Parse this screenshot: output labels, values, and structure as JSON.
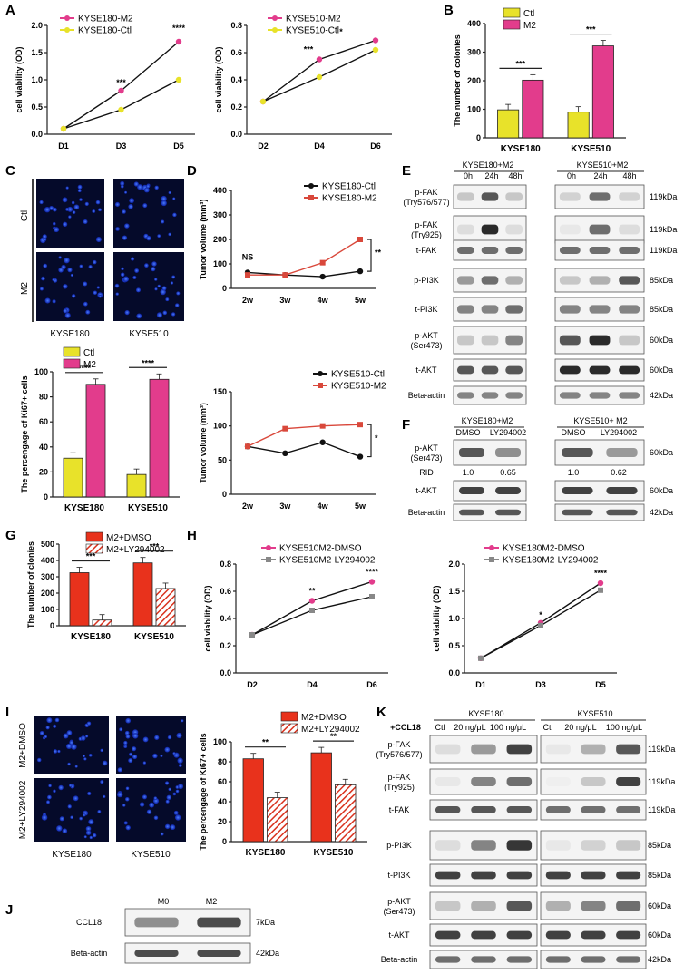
{
  "panels": {
    "A": "A",
    "B": "B",
    "C": "C",
    "D": "D",
    "E": "E",
    "F": "F",
    "G": "G",
    "H": "H",
    "I": "I",
    "J": "J",
    "K": "K"
  },
  "panel_A1": {
    "title": "",
    "ylabel": "cell viability (OD)",
    "legend": [
      "KYSE180-M2",
      "KYSE180-Ctl"
    ],
    "categories": [
      "D1",
      "D3",
      "D5"
    ],
    "yticks": [
      "0.0",
      "0.5",
      "1.0",
      "1.5",
      "2.0"
    ],
    "sig": [
      "***",
      "****"
    ],
    "colors": {
      "m2": "#e23c8c",
      "ctl": "#e8e22a"
    }
  },
  "panel_A2": {
    "ylabel": "cell viability (OD)",
    "legend": [
      "KYSE510-M2",
      "KYSE510-Ctl"
    ],
    "categories": [
      "D2",
      "D4",
      "D6"
    ],
    "yticks": [
      "0.0",
      "0.2",
      "0.4",
      "0.6",
      "0.8"
    ],
    "sig": [
      "***",
      "*"
    ]
  },
  "panel_B": {
    "ylabel": "The number of colonies",
    "legend": [
      "Ctl",
      "M2"
    ],
    "categories": [
      "KYSE180",
      "KYSE510"
    ],
    "yticks": [
      "0",
      "100",
      "200",
      "300",
      "400"
    ],
    "sig": [
      "***",
      "***"
    ]
  },
  "panel_C": {
    "row_labels": [
      "Ctl",
      "M2"
    ],
    "col_labels": [
      "KYSE180",
      "KYSE510"
    ],
    "ylabel": "The percengage of Ki67+ cells",
    "legend": [
      "Ctl",
      "M2"
    ],
    "categories": [
      "KYSE180",
      "KYSE510"
    ],
    "yticks": [
      "0",
      "20",
      "40",
      "60",
      "80",
      "100"
    ],
    "sig": [
      "****",
      "****"
    ]
  },
  "panel_D1": {
    "ylabel": "Tumor volume (mm³)",
    "legend": [
      "KYSE180-Ctl",
      "KYSE180-M2"
    ],
    "categories": [
      "2w",
      "3w",
      "4w",
      "5w"
    ],
    "yticks": [
      "0",
      "100",
      "200",
      "300",
      "400"
    ],
    "ns": "NS",
    "sig": "**"
  },
  "panel_D2": {
    "ylabel": "Tumor volume (mm³)",
    "legend": [
      "KYSE510-Ctl",
      "KYSE510-M2"
    ],
    "categories": [
      "2w",
      "3w",
      "4w",
      "5w"
    ],
    "yticks": [
      "0",
      "50",
      "100",
      "150"
    ],
    "sig": "*"
  },
  "panel_E": {
    "groups": [
      "KYSE180+M2",
      "KYSE510+M2"
    ],
    "times": [
      "0h",
      "24h",
      "48h"
    ],
    "rows": [
      "p-FAK (Try576/577)",
      "p-FAK (Try925)",
      "t-FAK",
      "p-PI3K",
      "t-PI3K",
      "p-AKT (Ser473)",
      "t-AKT",
      "Beta-actin"
    ],
    "row_labels_l1": [
      "p-FAK",
      "p-FAK",
      "t-FAK",
      "p-PI3K",
      "t-PI3K",
      "p-AKT",
      "t-AKT",
      "Beta-actin"
    ],
    "row_labels_l2": [
      "(Try576/577)",
      "(Try925)",
      "",
      "",
      "",
      "(Ser473)",
      "",
      ""
    ],
    "mw": [
      "119kDa",
      "119kDa",
      "119kDa",
      "85kDa",
      "85kDa",
      "60kDa",
      "60kDa",
      "42kDa"
    ]
  },
  "panel_F": {
    "groups": [
      "KYSE180+M2",
      "KYSE510+ M2"
    ],
    "treat": [
      "DMSO",
      "LY294002"
    ],
    "rows_l1": [
      "p-AKT",
      "t-AKT",
      "Beta-actin"
    ],
    "rows_l2": [
      "(Ser473)",
      "",
      ""
    ],
    "rid_label": "RID",
    "rid": [
      "1.0",
      "0.65",
      "1.0",
      "0.62"
    ],
    "mw": [
      "60kDa",
      "60kDa",
      "42kDa"
    ]
  },
  "panel_G": {
    "ylabel": "The number of clonies",
    "legend": [
      "M2+DMSO",
      "M2+LY294002"
    ],
    "categories": [
      "KYSE180",
      "KYSE510"
    ],
    "yticks": [
      "0",
      "100",
      "200",
      "300",
      "400",
      "500"
    ],
    "sig": [
      "***",
      "***"
    ]
  },
  "panel_H1": {
    "ylabel": "cell viability (OD)",
    "legend": [
      "KYSE510M2-DMSO",
      "KYSE510M2-LY294002"
    ],
    "categories": [
      "D2",
      "D4",
      "D6"
    ],
    "yticks": [
      "0.0",
      "0.2",
      "0.4",
      "0.6",
      "0.8"
    ],
    "sig": [
      "**",
      "****"
    ]
  },
  "panel_H2": {
    "ylabel": "cell viability (OD)",
    "legend": [
      "KYSE180M2-DMSO",
      "KYSE180M2-LY294002"
    ],
    "categories": [
      "D1",
      "D3",
      "D5"
    ],
    "yticks": [
      "0.0",
      "0.5",
      "1.0",
      "1.5",
      "2.0"
    ],
    "sig": [
      "*",
      "****"
    ]
  },
  "panel_I": {
    "row_labels": [
      "M2+DMSO",
      "M2+LY294002"
    ],
    "col_labels": [
      "KYSE180",
      "KYSE510"
    ],
    "ylabel": "The percengage of Ki67+ cells",
    "legend": [
      "M2+DMSO",
      "M2+LY294002"
    ],
    "categories": [
      "KYSE180",
      "KYSE510"
    ],
    "yticks": [
      "0",
      "20",
      "40",
      "60",
      "80",
      "100"
    ],
    "sig": [
      "**",
      "**"
    ]
  },
  "panel_J": {
    "cols": [
      "M0",
      "M2"
    ],
    "rows": [
      "CCL18",
      "Beta-actin"
    ],
    "mw": [
      "7kDa",
      "42kDa"
    ]
  },
  "panel_K": {
    "groups": [
      "KYSE180",
      "KYSE510"
    ],
    "treat_label": "+CCL18",
    "treat": [
      "Ctl",
      "20 ng/μL",
      "100 ng/μL"
    ],
    "rows_l1": [
      "p-FAK",
      "p-FAK",
      "t-FAK",
      "p-PI3K",
      "t-PI3K",
      "p-AKT",
      "t-AKT",
      "Beta-actin"
    ],
    "rows_l2": [
      "(Try576/577)",
      "(Try925)",
      "",
      "",
      "",
      "(Ser473)",
      "",
      ""
    ],
    "mw": [
      "119kDa",
      "119kDa",
      "119kDa",
      "85kDa",
      "85kDa",
      "60kDa",
      "60kDa",
      "42kDa"
    ]
  },
  "chart_data": [
    {
      "id": "A1",
      "type": "line",
      "title": "",
      "xlabel": "",
      "ylabel": "cell viability (OD)",
      "categories": [
        "D1",
        "D3",
        "D5"
      ],
      "ylim": [
        0,
        2
      ],
      "series": [
        {
          "name": "KYSE180-M2",
          "values": [
            0.1,
            0.8,
            1.7
          ]
        },
        {
          "name": "KYSE180-Ctl",
          "values": [
            0.1,
            0.45,
            1.0
          ]
        }
      ]
    },
    {
      "id": "A2",
      "type": "line",
      "title": "",
      "xlabel": "",
      "ylabel": "cell viability (OD)",
      "categories": [
        "D2",
        "D4",
        "D6"
      ],
      "ylim": [
        0,
        0.8
      ],
      "series": [
        {
          "name": "KYSE510-M2",
          "values": [
            0.24,
            0.55,
            0.69
          ]
        },
        {
          "name": "KYSE510-Ctl",
          "values": [
            0.24,
            0.42,
            0.62
          ]
        }
      ]
    },
    {
      "id": "B",
      "type": "bar",
      "ylabel": "The number of colonies",
      "categories": [
        "KYSE180",
        "KYSE510"
      ],
      "ylim": [
        0,
        400
      ],
      "series": [
        {
          "name": "Ctl",
          "values": [
            98,
            90
          ]
        },
        {
          "name": "M2",
          "values": [
            202,
            322
          ]
        }
      ]
    },
    {
      "id": "C",
      "type": "bar",
      "ylabel": "The percengage of Ki67+ cells",
      "categories": [
        "KYSE180",
        "KYSE510"
      ],
      "ylim": [
        0,
        100
      ],
      "series": [
        {
          "name": "Ctl",
          "values": [
            31,
            18
          ]
        },
        {
          "name": "M2",
          "values": [
            90,
            94
          ]
        }
      ]
    },
    {
      "id": "D1",
      "type": "line",
      "ylabel": "Tumor volume (mm³)",
      "categories": [
        "2w",
        "3w",
        "4w",
        "5w"
      ],
      "ylim": [
        0,
        400
      ],
      "series": [
        {
          "name": "KYSE180-Ctl",
          "values": [
            65,
            55,
            48,
            70
          ]
        },
        {
          "name": "KYSE180-M2",
          "values": [
            55,
            55,
            105,
            200
          ]
        }
      ]
    },
    {
      "id": "D2",
      "type": "line",
      "ylabel": "Tumor volume (mm³)",
      "categories": [
        "2w",
        "3w",
        "4w",
        "5w"
      ],
      "ylim": [
        0,
        150
      ],
      "series": [
        {
          "name": "KYSE510-Ctl",
          "values": [
            70,
            60,
            76,
            55
          ]
        },
        {
          "name": "KYSE510-M2",
          "values": [
            70,
            96,
            100,
            102
          ]
        }
      ]
    },
    {
      "id": "G",
      "type": "bar",
      "ylabel": "The number of clonies",
      "categories": [
        "KYSE180",
        "KYSE510"
      ],
      "ylim": [
        0,
        500
      ],
      "series": [
        {
          "name": "M2+DMSO",
          "values": [
            325,
            385
          ]
        },
        {
          "name": "M2+LY294002",
          "values": [
            35,
            228
          ]
        }
      ]
    },
    {
      "id": "H1",
      "type": "line",
      "ylabel": "cell viability (OD)",
      "categories": [
        "D2",
        "D4",
        "D6"
      ],
      "ylim": [
        0,
        0.8
      ],
      "series": [
        {
          "name": "KYSE510M2-DMSO",
          "values": [
            0.28,
            0.53,
            0.67
          ]
        },
        {
          "name": "KYSE510M2-LY294002",
          "values": [
            0.28,
            0.46,
            0.56
          ]
        }
      ]
    },
    {
      "id": "H2",
      "type": "line",
      "ylabel": "cell viability (OD)",
      "categories": [
        "D1",
        "D3",
        "D5"
      ],
      "ylim": [
        0,
        2
      ],
      "series": [
        {
          "name": "KYSE180M2-DMSO",
          "values": [
            0.27,
            0.92,
            1.65
          ]
        },
        {
          "name": "KYSE180M2-LY294002",
          "values": [
            0.27,
            0.87,
            1.52
          ]
        }
      ]
    },
    {
      "id": "I",
      "type": "bar",
      "ylabel": "The percengage of Ki67+ cells",
      "categories": [
        "KYSE180",
        "KYSE510"
      ],
      "ylim": [
        0,
        100
      ],
      "series": [
        {
          "name": "M2+DMSO",
          "values": [
            83,
            89
          ]
        },
        {
          "name": "M2+LY294002",
          "values": [
            44,
            57
          ]
        }
      ]
    }
  ]
}
